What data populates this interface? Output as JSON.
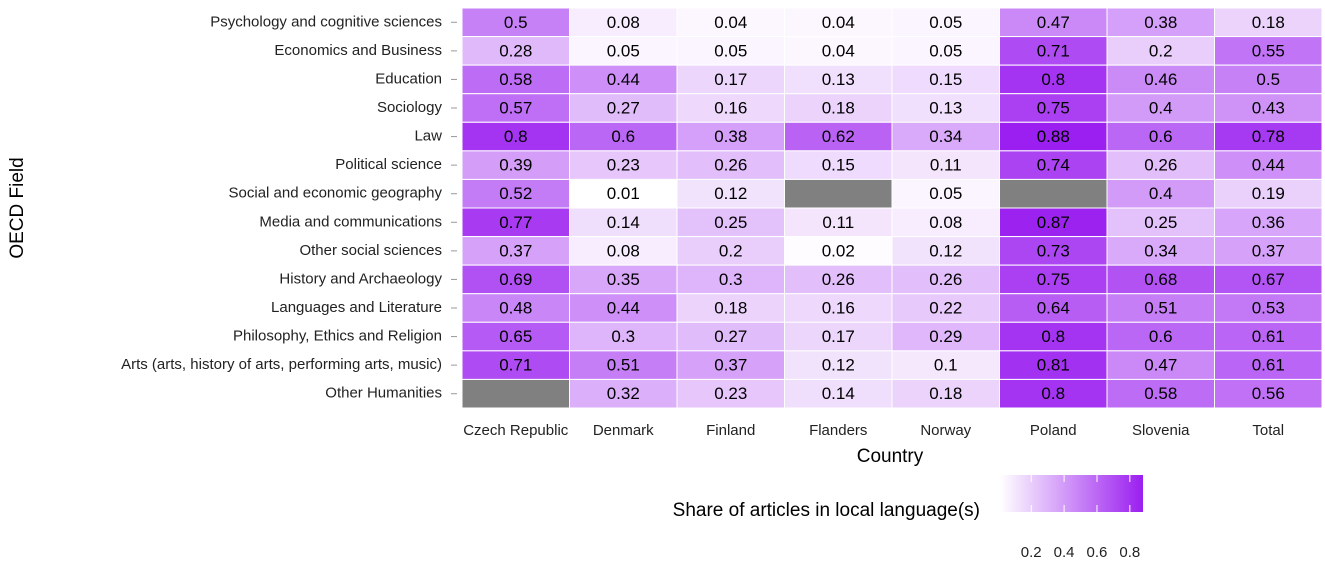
{
  "chart_data": {
    "type": "heatmap",
    "x_label": "Country",
    "y_label": "OECD Field",
    "x": [
      "Czech Republic",
      "Denmark",
      "Finland",
      "Flanders",
      "Norway",
      "Poland",
      "Slovenia",
      "Total"
    ],
    "y": [
      "Psychology and cognitive sciences",
      "Economics and Business",
      "Education",
      "Sociology",
      "Law",
      "Political science",
      "Social and economic geography",
      "Media and communications",
      "Other social sciences",
      "History and Archaeology",
      "Languages and Literature",
      "Philosophy, Ethics and Religion",
      "Arts (arts, history of arts, performing arts, music)",
      "Other Humanities"
    ],
    "values": [
      [
        0.5,
        0.08,
        0.04,
        0.04,
        0.05,
        0.47,
        0.38,
        0.18
      ],
      [
        0.28,
        0.05,
        0.05,
        0.04,
        0.05,
        0.71,
        0.2,
        0.55
      ],
      [
        0.58,
        0.44,
        0.17,
        0.13,
        0.15,
        0.8,
        0.46,
        0.5
      ],
      [
        0.57,
        0.27,
        0.16,
        0.18,
        0.13,
        0.75,
        0.4,
        0.43
      ],
      [
        0.8,
        0.6,
        0.38,
        0.62,
        0.34,
        0.88,
        0.6,
        0.78
      ],
      [
        0.39,
        0.23,
        0.26,
        0.15,
        0.11,
        0.74,
        0.26,
        0.44
      ],
      [
        0.52,
        0.01,
        0.12,
        null,
        0.05,
        null,
        0.4,
        0.19
      ],
      [
        0.77,
        0.14,
        0.25,
        0.11,
        0.08,
        0.87,
        0.25,
        0.36
      ],
      [
        0.37,
        0.08,
        0.2,
        0.02,
        0.12,
        0.73,
        0.34,
        0.37
      ],
      [
        0.69,
        0.35,
        0.3,
        0.26,
        0.26,
        0.75,
        0.68,
        0.67
      ],
      [
        0.48,
        0.44,
        0.18,
        0.16,
        0.22,
        0.64,
        0.51,
        0.53
      ],
      [
        0.65,
        0.3,
        0.27,
        0.17,
        0.29,
        0.8,
        0.6,
        0.61
      ],
      [
        0.71,
        0.51,
        0.37,
        0.12,
        0.1,
        0.81,
        0.47,
        0.61
      ],
      [
        null,
        0.32,
        0.23,
        0.14,
        0.18,
        0.8,
        0.58,
        0.56
      ]
    ],
    "low_color": "#ffffff",
    "high_color": "#9b1ff0",
    "na_color": "#808080",
    "legend_title": "Share of articles in local language(s)",
    "clim": [
      0.01,
      0.88
    ],
    "cticks": [
      0.2,
      0.4,
      0.6,
      0.8
    ]
  }
}
